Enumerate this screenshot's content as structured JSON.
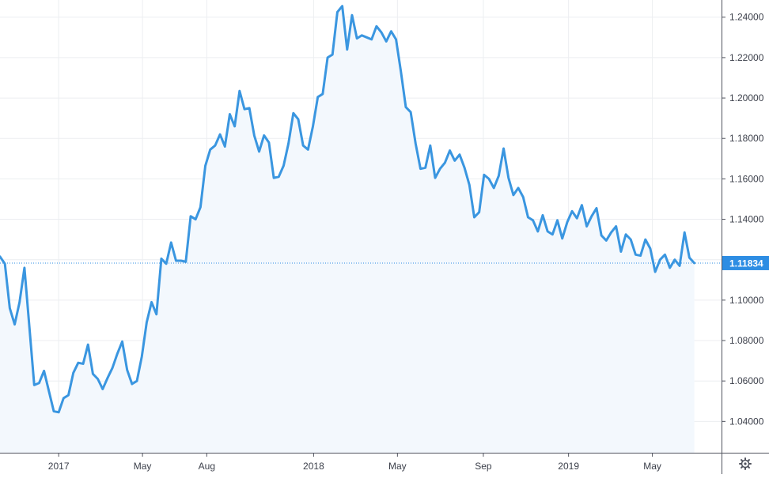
{
  "chart_data": {
    "type": "area",
    "series": [
      {
        "values": [
          [
            "2016-10-09",
            1.1215
          ],
          [
            "2016-10-16",
            1.118
          ],
          [
            "2016-10-23",
            1.096
          ],
          [
            "2016-10-30",
            1.088
          ],
          [
            "2016-11-06",
            1.099
          ],
          [
            "2016-11-13",
            1.116
          ],
          [
            "2016-11-20",
            1.087
          ],
          [
            "2016-11-27",
            1.058
          ],
          [
            "2016-12-04",
            1.059
          ],
          [
            "2016-12-11",
            1.065
          ],
          [
            "2016-12-18",
            1.055
          ],
          [
            "2016-12-25",
            1.045
          ],
          [
            "2017-01-01",
            1.0445
          ],
          [
            "2017-01-08",
            1.0515
          ],
          [
            "2017-01-15",
            1.053
          ],
          [
            "2017-01-22",
            1.064
          ],
          [
            "2017-01-29",
            1.069
          ],
          [
            "2017-02-05",
            1.0685
          ],
          [
            "2017-02-12",
            1.078
          ],
          [
            "2017-02-19",
            1.0635
          ],
          [
            "2017-02-26",
            1.061
          ],
          [
            "2017-03-05",
            1.056
          ],
          [
            "2017-03-12",
            1.0615
          ],
          [
            "2017-03-19",
            1.0665
          ],
          [
            "2017-03-26",
            1.0735
          ],
          [
            "2017-04-02",
            1.0795
          ],
          [
            "2017-04-09",
            1.0655
          ],
          [
            "2017-04-16",
            1.0585
          ],
          [
            "2017-04-23",
            1.06
          ],
          [
            "2017-04-30",
            1.072
          ],
          [
            "2017-05-07",
            1.089
          ],
          [
            "2017-05-14",
            1.099
          ],
          [
            "2017-05-21",
            1.093
          ],
          [
            "2017-05-28",
            1.1205
          ],
          [
            "2017-06-04",
            1.118
          ],
          [
            "2017-06-11",
            1.1285
          ],
          [
            "2017-06-18",
            1.1195
          ],
          [
            "2017-06-25",
            1.1195
          ],
          [
            "2017-07-02",
            1.119
          ],
          [
            "2017-07-09",
            1.1415
          ],
          [
            "2017-07-16",
            1.14
          ],
          [
            "2017-07-23",
            1.146
          ],
          [
            "2017-07-30",
            1.1665
          ],
          [
            "2017-08-06",
            1.1745
          ],
          [
            "2017-08-13",
            1.1765
          ],
          [
            "2017-08-20",
            1.182
          ],
          [
            "2017-08-27",
            1.176
          ],
          [
            "2017-09-03",
            1.192
          ],
          [
            "2017-09-10",
            1.186
          ],
          [
            "2017-09-17",
            1.2035
          ],
          [
            "2017-09-24",
            1.1945
          ],
          [
            "2017-10-01",
            1.195
          ],
          [
            "2017-10-08",
            1.1815
          ],
          [
            "2017-10-15",
            1.1735
          ],
          [
            "2017-10-22",
            1.1815
          ],
          [
            "2017-10-29",
            1.178
          ],
          [
            "2017-11-05",
            1.1605
          ],
          [
            "2017-11-12",
            1.161
          ],
          [
            "2017-11-19",
            1.1665
          ],
          [
            "2017-11-26",
            1.1775
          ],
          [
            "2017-12-03",
            1.1925
          ],
          [
            "2017-12-10",
            1.1895
          ],
          [
            "2017-12-17",
            1.1765
          ],
          [
            "2017-12-24",
            1.1745
          ],
          [
            "2017-12-31",
            1.186
          ],
          [
            "2018-01-07",
            1.2005
          ],
          [
            "2018-01-14",
            1.202
          ],
          [
            "2018-01-21",
            1.22
          ],
          [
            "2018-01-28",
            1.2215
          ],
          [
            "2018-02-04",
            1.2425
          ],
          [
            "2018-02-11",
            1.2455
          ],
          [
            "2018-02-18",
            1.224
          ],
          [
            "2018-02-25",
            1.241
          ],
          [
            "2018-03-04",
            1.2295
          ],
          [
            "2018-03-11",
            1.231
          ],
          [
            "2018-03-18",
            1.23
          ],
          [
            "2018-03-25",
            1.229
          ],
          [
            "2018-04-01",
            1.2355
          ],
          [
            "2018-04-08",
            1.2325
          ],
          [
            "2018-04-15",
            1.228
          ],
          [
            "2018-04-22",
            1.233
          ],
          [
            "2018-04-29",
            1.229
          ],
          [
            "2018-05-06",
            1.213
          ],
          [
            "2018-05-13",
            1.1955
          ],
          [
            "2018-05-20",
            1.193
          ],
          [
            "2018-05-27",
            1.1775
          ],
          [
            "2018-06-03",
            1.165
          ],
          [
            "2018-06-10",
            1.1655
          ],
          [
            "2018-06-17",
            1.1765
          ],
          [
            "2018-06-24",
            1.1605
          ],
          [
            "2018-07-01",
            1.165
          ],
          [
            "2018-07-08",
            1.168
          ],
          [
            "2018-07-15",
            1.174
          ],
          [
            "2018-07-22",
            1.169
          ],
          [
            "2018-07-29",
            1.172
          ],
          [
            "2018-08-05",
            1.1655
          ],
          [
            "2018-08-12",
            1.157
          ],
          [
            "2018-08-19",
            1.141
          ],
          [
            "2018-08-26",
            1.1435
          ],
          [
            "2018-09-02",
            1.162
          ],
          [
            "2018-09-09",
            1.16
          ],
          [
            "2018-09-16",
            1.1555
          ],
          [
            "2018-09-23",
            1.1615
          ],
          [
            "2018-09-30",
            1.175
          ],
          [
            "2018-10-07",
            1.1605
          ],
          [
            "2018-10-14",
            1.152
          ],
          [
            "2018-10-21",
            1.1555
          ],
          [
            "2018-10-28",
            1.151
          ],
          [
            "2018-11-04",
            1.141
          ],
          [
            "2018-11-11",
            1.1395
          ],
          [
            "2018-11-18",
            1.134
          ],
          [
            "2018-11-25",
            1.142
          ],
          [
            "2018-12-02",
            1.134
          ],
          [
            "2018-12-09",
            1.1325
          ],
          [
            "2018-12-16",
            1.1395
          ],
          [
            "2018-12-23",
            1.1305
          ],
          [
            "2018-12-30",
            1.1385
          ],
          [
            "2019-01-06",
            1.144
          ],
          [
            "2019-01-13",
            1.1405
          ],
          [
            "2019-01-20",
            1.147
          ],
          [
            "2019-01-27",
            1.1365
          ],
          [
            "2019-02-03",
            1.1415
          ],
          [
            "2019-02-10",
            1.1455
          ],
          [
            "2019-02-17",
            1.132
          ],
          [
            "2019-02-24",
            1.1295
          ],
          [
            "2019-03-03",
            1.1335
          ],
          [
            "2019-03-10",
            1.1365
          ],
          [
            "2019-03-17",
            1.124
          ],
          [
            "2019-03-24",
            1.1325
          ],
          [
            "2019-03-31",
            1.13
          ],
          [
            "2019-04-07",
            1.1225
          ],
          [
            "2019-04-14",
            1.122
          ],
          [
            "2019-04-21",
            1.13
          ],
          [
            "2019-04-28",
            1.1255
          ],
          [
            "2019-05-05",
            1.114
          ],
          [
            "2019-05-12",
            1.12
          ],
          [
            "2019-05-19",
            1.1225
          ],
          [
            "2019-05-26",
            1.116
          ],
          [
            "2019-06-02",
            1.12
          ],
          [
            "2019-06-09",
            1.117
          ],
          [
            "2019-06-16",
            1.1335
          ],
          [
            "2019-06-23",
            1.121
          ],
          [
            "2019-06-30",
            1.11834
          ]
        ]
      }
    ],
    "x_ticks": [
      {
        "date": "2017-01-01",
        "label": "2017"
      },
      {
        "date": "2017-05-01",
        "label": "May"
      },
      {
        "date": "2017-08-01",
        "label": "Aug"
      },
      {
        "date": "2018-01-01",
        "label": "2018"
      },
      {
        "date": "2018-05-01",
        "label": "May"
      },
      {
        "date": "2018-09-01",
        "label": "Sep"
      },
      {
        "date": "2019-01-01",
        "label": "2019"
      },
      {
        "date": "2019-05-01",
        "label": "May"
      }
    ],
    "y_ticks": [
      "1.04000",
      "1.06000",
      "1.08000",
      "1.10000",
      "1.12000",
      "1.14000",
      "1.16000",
      "1.18000",
      "1.20000",
      "1.22000",
      "1.24000"
    ],
    "ylim": [
      1.0245,
      1.2485
    ],
    "xlim": [
      "2016-10-09",
      "2019-08-08"
    ],
    "grid": true,
    "last_price": 1.11834,
    "last_price_label": "1.11834",
    "colors": {
      "line": "#3a96e0",
      "fill": "#f3f8fd",
      "grid": "#eceef1",
      "axis": "#50535e",
      "label_bg": "#2d8de3",
      "label_text": "#ffffff",
      "tick_text": "#3b3f4a"
    }
  },
  "settings_icon": "gear-icon"
}
